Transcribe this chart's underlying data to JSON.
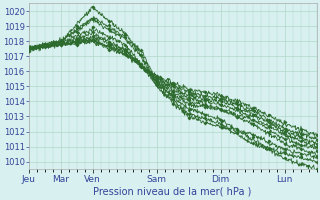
{
  "background_color": "#d8f0f0",
  "grid_color": "#b0d8c8",
  "line_color": "#2d6a2d",
  "marker_color": "#2d6a2d",
  "xlabel": "Pression niveau de la mer( hPa )",
  "ylim": [
    1009.5,
    1020.5
  ],
  "yticks": [
    1010,
    1011,
    1012,
    1013,
    1014,
    1015,
    1016,
    1017,
    1018,
    1019,
    1020
  ],
  "day_labels": [
    "Jeu",
    "Mar",
    "Ven",
    "Sam",
    "Dim",
    "Lun"
  ],
  "day_positions": [
    0,
    24,
    48,
    96,
    144,
    192
  ],
  "xlim": [
    0,
    216
  ],
  "curves": [
    {
      "waypoints": [
        [
          0,
          1017.5
        ],
        [
          24,
          1018.0
        ],
        [
          48,
          1020.2
        ],
        [
          72,
          1018.5
        ],
        [
          96,
          1015.2
        ],
        [
          120,
          1013.5
        ],
        [
          144,
          1012.8
        ],
        [
          168,
          1011.5
        ],
        [
          192,
          1010.2
        ],
        [
          216,
          1009.5
        ]
      ]
    },
    {
      "waypoints": [
        [
          0,
          1017.5
        ],
        [
          24,
          1018.0
        ],
        [
          48,
          1019.6
        ],
        [
          72,
          1018.3
        ],
        [
          96,
          1015.0
        ],
        [
          120,
          1013.2
        ],
        [
          144,
          1012.5
        ],
        [
          168,
          1011.2
        ],
        [
          192,
          1010.5
        ],
        [
          216,
          1010.0
        ]
      ]
    },
    {
      "waypoints": [
        [
          0,
          1017.5
        ],
        [
          24,
          1018.0
        ],
        [
          48,
          1019.4
        ],
        [
          72,
          1018.1
        ],
        [
          96,
          1014.9
        ],
        [
          120,
          1013.0
        ],
        [
          144,
          1012.3
        ],
        [
          168,
          1011.8
        ],
        [
          192,
          1010.8
        ],
        [
          216,
          1010.3
        ]
      ]
    },
    {
      "waypoints": [
        [
          0,
          1017.5
        ],
        [
          24,
          1017.9
        ],
        [
          48,
          1018.8
        ],
        [
          72,
          1017.8
        ],
        [
          96,
          1015.1
        ],
        [
          120,
          1013.8
        ],
        [
          144,
          1013.5
        ],
        [
          168,
          1012.5
        ],
        [
          192,
          1011.2
        ],
        [
          216,
          1010.5
        ]
      ]
    },
    {
      "waypoints": [
        [
          0,
          1017.5
        ],
        [
          24,
          1017.8
        ],
        [
          48,
          1018.5
        ],
        [
          72,
          1017.5
        ],
        [
          96,
          1015.3
        ],
        [
          120,
          1014.0
        ],
        [
          144,
          1013.5
        ],
        [
          168,
          1012.8
        ],
        [
          192,
          1011.5
        ],
        [
          216,
          1010.8
        ]
      ]
    },
    {
      "waypoints": [
        [
          0,
          1017.5
        ],
        [
          24,
          1017.8
        ],
        [
          48,
          1018.3
        ],
        [
          72,
          1017.4
        ],
        [
          96,
          1015.4
        ],
        [
          120,
          1014.2
        ],
        [
          144,
          1013.8
        ],
        [
          168,
          1013.0
        ],
        [
          192,
          1011.8
        ],
        [
          216,
          1011.0
        ]
      ]
    },
    {
      "waypoints": [
        [
          0,
          1017.5
        ],
        [
          24,
          1017.8
        ],
        [
          48,
          1018.1
        ],
        [
          72,
          1017.3
        ],
        [
          96,
          1015.5
        ],
        [
          120,
          1014.4
        ],
        [
          144,
          1014.0
        ],
        [
          168,
          1013.2
        ],
        [
          192,
          1012.0
        ],
        [
          216,
          1011.2
        ]
      ]
    },
    {
      "waypoints": [
        [
          0,
          1017.5
        ],
        [
          24,
          1017.8
        ],
        [
          48,
          1018.0
        ],
        [
          72,
          1017.2
        ],
        [
          96,
          1015.6
        ],
        [
          120,
          1014.6
        ],
        [
          144,
          1014.2
        ],
        [
          168,
          1013.4
        ],
        [
          192,
          1012.2
        ],
        [
          216,
          1011.5
        ]
      ]
    },
    {
      "waypoints": [
        [
          0,
          1017.5
        ],
        [
          24,
          1017.8
        ],
        [
          48,
          1018.0
        ],
        [
          72,
          1017.1
        ],
        [
          96,
          1015.7
        ],
        [
          120,
          1014.8
        ],
        [
          144,
          1014.4
        ],
        [
          168,
          1013.6
        ],
        [
          192,
          1012.5
        ],
        [
          216,
          1011.8
        ]
      ]
    }
  ],
  "xlabel_fontsize": 7,
  "ytick_fontsize": 6,
  "xtick_fontsize": 6.5
}
